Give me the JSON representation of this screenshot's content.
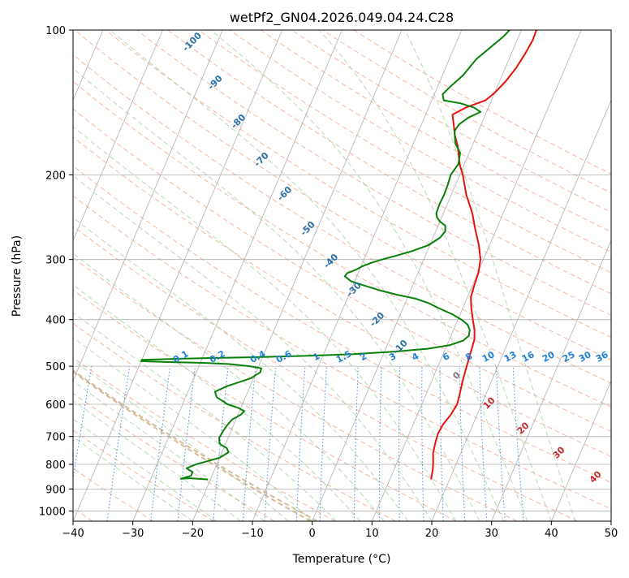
{
  "chart_data": {
    "type": "line",
    "title": "wetPf2_GN04.2026.049.04.24.C28",
    "xlabel": "Temperature (°C)",
    "ylabel": "Pressure (hPa)",
    "xlim": [
      -40,
      50
    ],
    "ylim": [
      1050,
      100
    ],
    "y_scale": "log",
    "skew": "skew-T",
    "grid": true,
    "x_ticks": [
      -40,
      -30,
      -20,
      -10,
      0,
      10,
      20,
      30,
      40,
      50
    ],
    "y_ticks": [
      100,
      200,
      300,
      400,
      500,
      600,
      700,
      800,
      900,
      1000
    ],
    "series": [
      {
        "color": "#e8120c",
        "points": [
          [
            16.9,
            860
          ],
          [
            16.5,
            820
          ],
          [
            16,
            790
          ],
          [
            15.4,
            760
          ],
          [
            15.0,
            720
          ],
          [
            14.8,
            690
          ],
          [
            15.0,
            660
          ],
          [
            15.6,
            630
          ],
          [
            15.9,
            600
          ],
          [
            15.6,
            570
          ],
          [
            15.2,
            540
          ],
          [
            15.0,
            520
          ],
          [
            14.8,
            500
          ],
          [
            14.6,
            480
          ],
          [
            14.4,
            460
          ],
          [
            14.2,
            440
          ],
          [
            13.5,
            420
          ],
          [
            12.5,
            400
          ],
          [
            11.5,
            380
          ],
          [
            10.6,
            360
          ],
          [
            10.3,
            340
          ],
          [
            10.1,
            320
          ],
          [
            9.5,
            300
          ],
          [
            8.2,
            280
          ],
          [
            6.5,
            260
          ],
          [
            4.8,
            240
          ],
          [
            2.5,
            220
          ],
          [
            0.5,
            200
          ],
          [
            -0.8,
            190
          ],
          [
            -2.3,
            175
          ],
          [
            -3.7,
            165
          ],
          [
            -4.5,
            158
          ],
          [
            -5.5,
            150
          ],
          [
            -3.8,
            145
          ],
          [
            -1.0,
            140
          ],
          [
            0,
            135
          ],
          [
            1.0,
            128
          ],
          [
            1.8,
            120
          ],
          [
            2.3,
            112
          ],
          [
            2.6,
            105
          ],
          [
            2.5,
            100
          ]
        ]
      },
      {
        "color": "#0a800a",
        "points": [
          [
            -20.4,
            860
          ],
          [
            -23.4,
            855
          ],
          [
            -25.0,
            857
          ],
          [
            -23.5,
            845
          ],
          [
            -23.5,
            830
          ],
          [
            -24.8,
            815
          ],
          [
            -23.5,
            800
          ],
          [
            -20.0,
            775
          ],
          [
            -18.9,
            755
          ],
          [
            -19.5,
            740
          ],
          [
            -21.0,
            725
          ],
          [
            -21.5,
            705
          ],
          [
            -21.3,
            680
          ],
          [
            -21.0,
            660
          ],
          [
            -20.6,
            645
          ],
          [
            -19.5,
            630
          ],
          [
            -19.2,
            620
          ],
          [
            -20.5,
            610
          ],
          [
            -22.5,
            600
          ],
          [
            -24.8,
            580
          ],
          [
            -25.5,
            565
          ],
          [
            -23.8,
            550
          ],
          [
            -20.5,
            530
          ],
          [
            -19.3,
            515
          ],
          [
            -19.4,
            505
          ],
          [
            -21.5,
            500
          ],
          [
            -25.0,
            495
          ],
          [
            -29.5,
            492
          ],
          [
            -36.0,
            490
          ],
          [
            -40.0,
            488
          ],
          [
            -40,
            485
          ],
          [
            -33.0,
            482
          ],
          [
            -22.0,
            479
          ],
          [
            -13.0,
            476
          ],
          [
            -5.0,
            472
          ],
          [
            2.0,
            466
          ],
          [
            7.0,
            460
          ],
          [
            10.5,
            452
          ],
          [
            12.4,
            442
          ],
          [
            13.0,
            432
          ],
          [
            12.7,
            420
          ],
          [
            12.0,
            410
          ],
          [
            10.6,
            400
          ],
          [
            8.7,
            390
          ],
          [
            6.3,
            380
          ],
          [
            4.0,
            370
          ],
          [
            1.5,
            362
          ],
          [
            -2.0,
            355
          ],
          [
            -5.0,
            348
          ],
          [
            -8.0,
            340
          ],
          [
            -10.6,
            333
          ],
          [
            -12.0,
            325
          ],
          [
            -11.8,
            320
          ],
          [
            -10.6,
            315
          ],
          [
            -9.8,
            310
          ],
          [
            -8.6,
            305
          ],
          [
            -7.0,
            300
          ],
          [
            -5.0,
            295
          ],
          [
            -2.5,
            288
          ],
          [
            -0.2,
            280
          ],
          [
            1.2,
            270
          ],
          [
            1.6,
            262
          ],
          [
            1.2,
            255
          ],
          [
            0.0,
            250
          ],
          [
            -0.8,
            245
          ],
          [
            -1.2,
            240
          ],
          [
            -1.3,
            230
          ],
          [
            -1.2,
            220
          ],
          [
            -1.3,
            210
          ],
          [
            -1.5,
            200
          ],
          [
            -1.0,
            190
          ],
          [
            -1.5,
            180
          ],
          [
            -3.0,
            172
          ],
          [
            -4.0,
            162
          ],
          [
            -3.7,
            157
          ],
          [
            -2.6,
            152
          ],
          [
            -1.0,
            148
          ],
          [
            -2.4,
            145
          ],
          [
            -5.0,
            142
          ],
          [
            -8.0,
            140
          ],
          [
            -8.6,
            136
          ],
          [
            -8.0,
            132
          ],
          [
            -6.5,
            124
          ],
          [
            -5.5,
            115
          ],
          [
            -3.8,
            108
          ],
          [
            -2.5,
            103
          ],
          [
            -2.0,
            100
          ]
        ]
      }
    ],
    "isotherm_labels": [
      "-100",
      "-90",
      "-80",
      "-70",
      "-60",
      "-50",
      "-40",
      "-30",
      "-20",
      "-10"
    ],
    "mixing_ratio_labels": [
      "0.1",
      "0.2",
      "0.4",
      "0.6",
      "1",
      "1.5",
      "2",
      "3",
      "4",
      "6",
      "8",
      "10",
      "13",
      "16",
      "20",
      "25",
      "30",
      "36"
    ],
    "other_labels": [
      "0",
      "10",
      "20",
      "30",
      "40"
    ],
    "colors": {
      "temperature": "#e8120c",
      "dewpoint": "#0a800a",
      "isotherm_labels": "#2a6fa8",
      "mixing_ratio": "#1f7fd8",
      "red_labels": "#c62828",
      "zero_label": "#7a7a7a",
      "dry_adiabat": "#f4a98c",
      "moist_adiabat": "#9ccf9a",
      "special_adiabat": "#d2b48c",
      "grid": "#b0b0b0"
    }
  }
}
